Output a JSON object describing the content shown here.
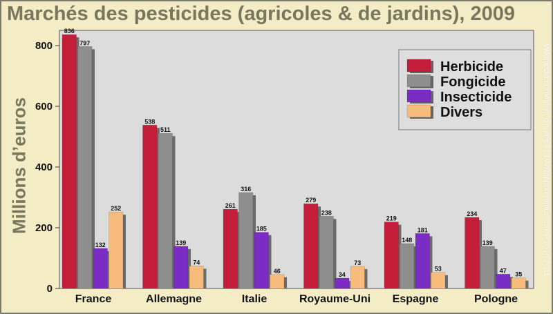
{
  "title": "Marchés des pesticides (agricoles & de jardins), 2009",
  "credit": "Wikimedia commons, d'après ECPA/Rapport annuel UIPP 2010-2011",
  "chart_data": {
    "type": "bar",
    "title": "Marchés des pesticides (agricoles & de jardins), 2009",
    "xlabel": "",
    "ylabel": "Millions d’euros",
    "ylim": [
      0,
      850
    ],
    "yticks": [
      0,
      200,
      400,
      600,
      800
    ],
    "grid": false,
    "legend_position": "top-right",
    "categories": [
      "France",
      "Allemagne",
      "Italie",
      "Royaume-Uni",
      "Espagne",
      "Pologne"
    ],
    "series": [
      {
        "name": "Herbicide",
        "color": "#c41e3a",
        "values": [
          836,
          538,
          261,
          279,
          219,
          234
        ]
      },
      {
        "name": "Fongicide",
        "color": "#8e8e8e",
        "values": [
          797,
          511,
          316,
          238,
          148,
          139
        ]
      },
      {
        "name": "Insecticide",
        "color": "#7a2cc4",
        "values": [
          132,
          139,
          185,
          34,
          181,
          47
        ]
      },
      {
        "name": "Divers",
        "color": "#f7bc7c",
        "values": [
          252,
          74,
          46,
          73,
          53,
          35
        ]
      }
    ]
  }
}
